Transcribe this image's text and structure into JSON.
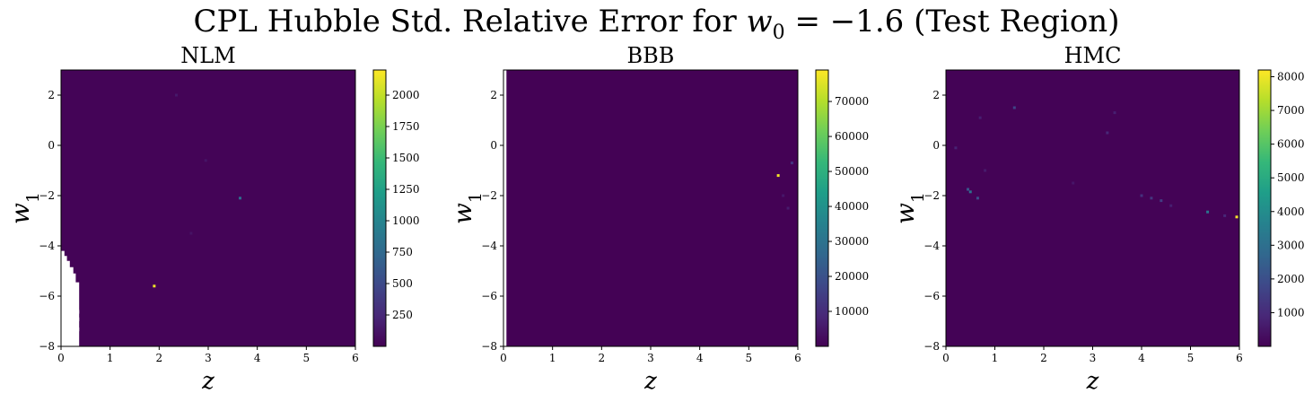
{
  "suptitle": {
    "prefix": "CPL Hubble Std. Relative Error for",
    "var": "w",
    "sub": "0",
    "value": "= −1.6",
    "suffix": "(Test Region)"
  },
  "colors": {
    "background_cell": "#440154",
    "colormap": [
      "#440154",
      "#482878",
      "#3e4989",
      "#31688e",
      "#26828e",
      "#1f9e89",
      "#35b779",
      "#6ece58",
      "#b5de2b",
      "#fde725"
    ]
  },
  "chart_data": [
    {
      "type": "heatmap",
      "title": "NLM",
      "xlabel": "z",
      "ylabel": "w",
      "ylabel_sub": "1",
      "xlim": [
        0,
        6
      ],
      "ylim": [
        -8,
        3
      ],
      "xticks": [
        0,
        1,
        2,
        3,
        4,
        5,
        6
      ],
      "yticks": [
        2,
        0,
        -2,
        -4,
        -6,
        -8
      ],
      "colorbar": {
        "min": 0,
        "max": 2200,
        "ticks": [
          250,
          500,
          750,
          1000,
          1250,
          1500,
          1750,
          2000
        ]
      },
      "background_value": 20,
      "hotspots": [
        {
          "z": 1.9,
          "w1": -5.6,
          "value": 2150
        },
        {
          "z": 3.65,
          "w1": -2.1,
          "value": 800
        },
        {
          "z": 2.35,
          "w1": 2.0,
          "value": 150
        },
        {
          "z": 2.95,
          "w1": -0.6,
          "value": 120
        },
        {
          "z": 2.65,
          "w1": -3.5,
          "value": 110
        }
      ],
      "missing_region": [
        [
          0.0,
          -4.2
        ],
        [
          0.07,
          -4.2
        ],
        [
          0.07,
          -4.4
        ],
        [
          0.12,
          -4.4
        ],
        [
          0.12,
          -4.6
        ],
        [
          0.18,
          -4.6
        ],
        [
          0.18,
          -4.85
        ],
        [
          0.25,
          -4.85
        ],
        [
          0.25,
          -5.1
        ],
        [
          0.3,
          -5.1
        ],
        [
          0.3,
          -5.45
        ],
        [
          0.37,
          -5.45
        ],
        [
          0.37,
          -8.0
        ],
        [
          0.0,
          -8.0
        ]
      ],
      "missing_gaps": [
        {
          "z0": 0.3,
          "z1": 0.37,
          "w0": -6.55,
          "w1": -6.7
        },
        {
          "z0": 0.3,
          "z1": 0.37,
          "w0": -6.85,
          "w1": -7.0
        },
        {
          "z0": 0.3,
          "z1": 0.37,
          "w0": -7.25,
          "w1": -7.4
        }
      ]
    },
    {
      "type": "heatmap",
      "title": "BBB",
      "xlabel": "z",
      "ylabel": "w",
      "ylabel_sub": "1",
      "xlim": [
        0,
        6
      ],
      "ylim": [
        -8,
        3
      ],
      "xticks": [
        0,
        1,
        2,
        3,
        4,
        5,
        6
      ],
      "yticks": [
        2,
        0,
        -2,
        -4,
        -6,
        -8
      ],
      "colorbar": {
        "min": 0,
        "max": 79000,
        "ticks": [
          10000,
          20000,
          30000,
          40000,
          50000,
          60000,
          70000
        ]
      },
      "background_value": 300,
      "hotspots": [
        {
          "z": 5.6,
          "w1": -1.2,
          "value": 78000
        },
        {
          "z": 5.88,
          "w1": -0.7,
          "value": 12000
        },
        {
          "z": 5.8,
          "w1": -2.5,
          "value": 6000
        },
        {
          "z": 5.7,
          "w1": -2.0,
          "value": 5000
        }
      ],
      "missing_region": [
        [
          0.0,
          3.0
        ],
        [
          0.06,
          3.0
        ],
        [
          0.06,
          -8.0
        ],
        [
          0.0,
          -8.0
        ]
      ],
      "missing_gaps": []
    },
    {
      "type": "heatmap",
      "title": "HMC",
      "xlabel": "z",
      "ylabel": "w",
      "ylabel_sub": "1",
      "xlim": [
        0,
        6
      ],
      "ylim": [
        -8,
        3
      ],
      "xticks": [
        0,
        1,
        2,
        3,
        4,
        5,
        6
      ],
      "yticks": [
        2,
        0,
        -2,
        -4,
        -6,
        -8
      ],
      "colorbar": {
        "min": 0,
        "max": 8200,
        "ticks": [
          1000,
          2000,
          3000,
          4000,
          5000,
          6000,
          7000,
          8000
        ]
      },
      "background_value": 40,
      "hotspots": [
        {
          "z": 6.0,
          "w1": -2.85,
          "value": 8100
        },
        {
          "z": 5.35,
          "w1": -2.65,
          "value": 3200
        },
        {
          "z": 0.5,
          "w1": -1.85,
          "value": 3000
        },
        {
          "z": 0.45,
          "w1": -1.75,
          "value": 2200
        },
        {
          "z": 0.65,
          "w1": -2.1,
          "value": 2000
        },
        {
          "z": 1.4,
          "w1": 1.5,
          "value": 1700
        },
        {
          "z": 4.4,
          "w1": -2.2,
          "value": 1500
        },
        {
          "z": 4.2,
          "w1": -2.1,
          "value": 1300
        },
        {
          "z": 4.0,
          "w1": -2.0,
          "value": 1200
        },
        {
          "z": 3.3,
          "w1": 0.5,
          "value": 900
        },
        {
          "z": 3.45,
          "w1": 1.3,
          "value": 700
        },
        {
          "z": 0.7,
          "w1": 1.1,
          "value": 700
        },
        {
          "z": 0.2,
          "w1": -0.1,
          "value": 800
        },
        {
          "z": 0.8,
          "w1": -1.0,
          "value": 600
        },
        {
          "z": 2.6,
          "w1": -1.5,
          "value": 500
        },
        {
          "z": 5.7,
          "w1": -2.8,
          "value": 900
        },
        {
          "z": 4.6,
          "w1": -2.4,
          "value": 700
        }
      ],
      "missing_region": [],
      "missing_gaps": []
    }
  ]
}
